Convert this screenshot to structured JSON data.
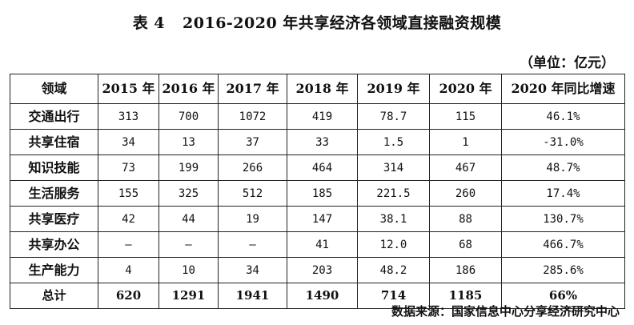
{
  "title": {
    "label": "表 4",
    "text": "2016-2020 年共享经济各领域直接融资规模"
  },
  "unit": "（单位：亿元）",
  "table": {
    "headers": [
      "领域",
      "2015 年",
      "2016 年",
      "2017 年",
      "2018 年",
      "2019 年",
      "2020 年",
      "2020 年同比增速"
    ],
    "rows": [
      [
        "交通出行",
        "313",
        "700",
        "1072",
        "419",
        "78.7",
        "115",
        "46.1%"
      ],
      [
        "共享住宿",
        "34",
        "13",
        "37",
        "33",
        "1.5",
        "1",
        "-31.0%"
      ],
      [
        "知识技能",
        "73",
        "199",
        "266",
        "464",
        "314",
        "467",
        "48.7%"
      ],
      [
        "生活服务",
        "155",
        "325",
        "512",
        "185",
        "221.5",
        "260",
        "17.4%"
      ],
      [
        "共享医疗",
        "42",
        "44",
        "19",
        "147",
        "38.1",
        "88",
        "130.7%"
      ],
      [
        "共享办公",
        "—",
        "—",
        "—",
        "41",
        "12.0",
        "68",
        "466.7%"
      ],
      [
        "生产能力",
        "4",
        "10",
        "34",
        "203",
        "48.2",
        "186",
        "285.6%"
      ]
    ],
    "total": [
      "总计",
      "620",
      "1291",
      "1941",
      "1490",
      "714",
      "1185",
      "66%"
    ]
  },
  "source": "数据来源：国家信息中心分享经济研究中心"
}
